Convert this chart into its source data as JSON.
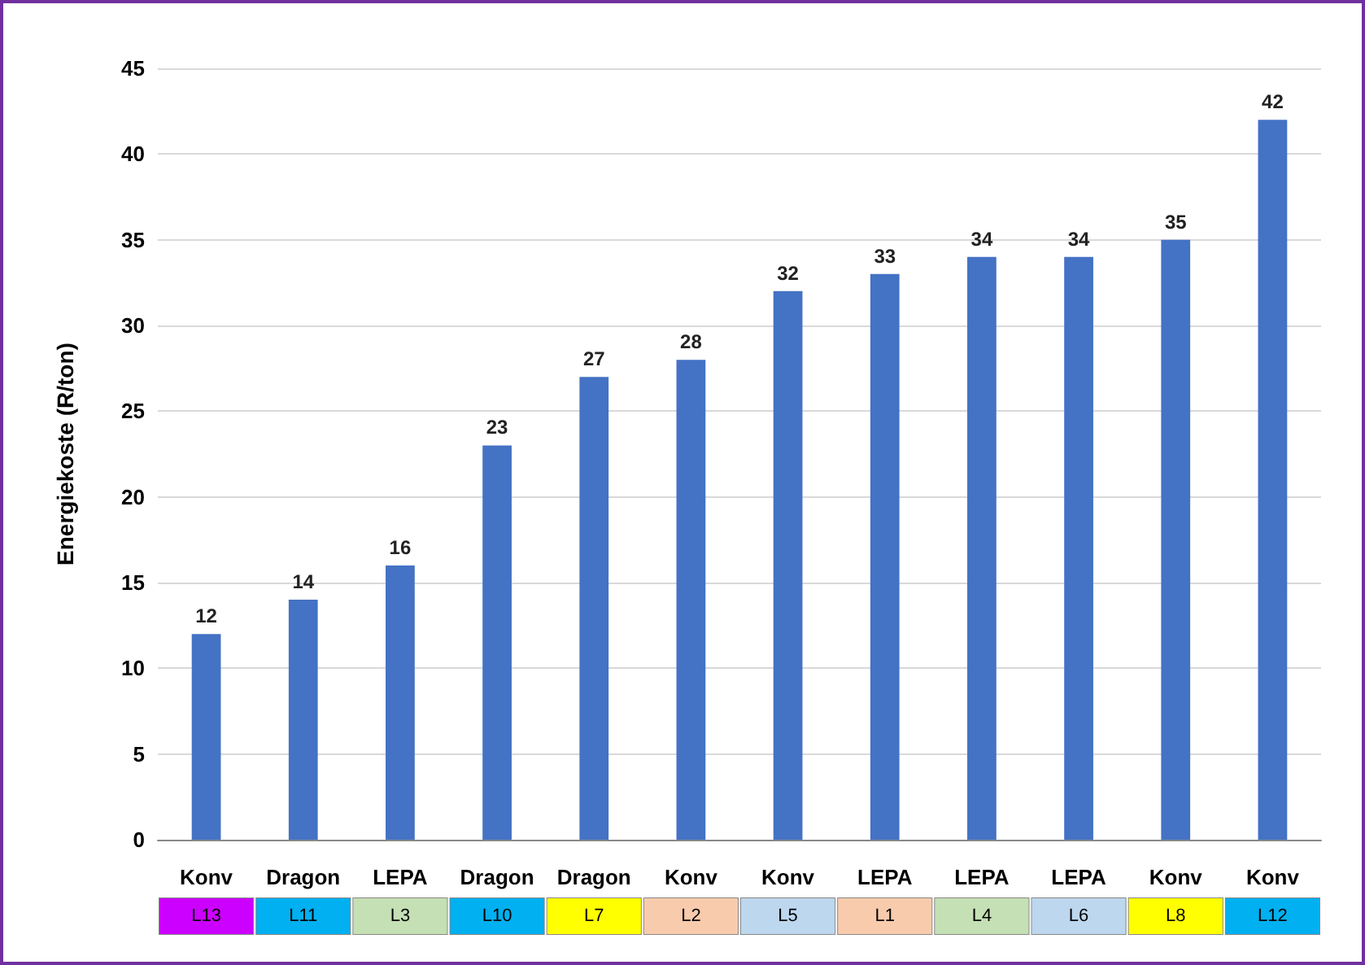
{
  "chart_data": {
    "type": "bar",
    "ylabel": "Energiekoste (R/ton)",
    "categories": [
      "Konv\nL13",
      "Dragon\nL11",
      "LEPA\nL3",
      "Dragon\nL10",
      "Dragon\nL7",
      "Konv\nL2",
      "Konv\nL5",
      "LEPA\nL1",
      "LEPA\nL4",
      "LEPA\nL6",
      "Konv\nL8",
      "Konv\nL12"
    ],
    "values": [
      12,
      14,
      16,
      23,
      27,
      28,
      32,
      33,
      34,
      34,
      35,
      42
    ],
    "color": "#4472c4",
    "ylim": [
      0,
      45
    ],
    "yticks": [
      0,
      5,
      10,
      15,
      20,
      25,
      30,
      35,
      40,
      45
    ],
    "grid": "y",
    "data_labels": true
  }
}
